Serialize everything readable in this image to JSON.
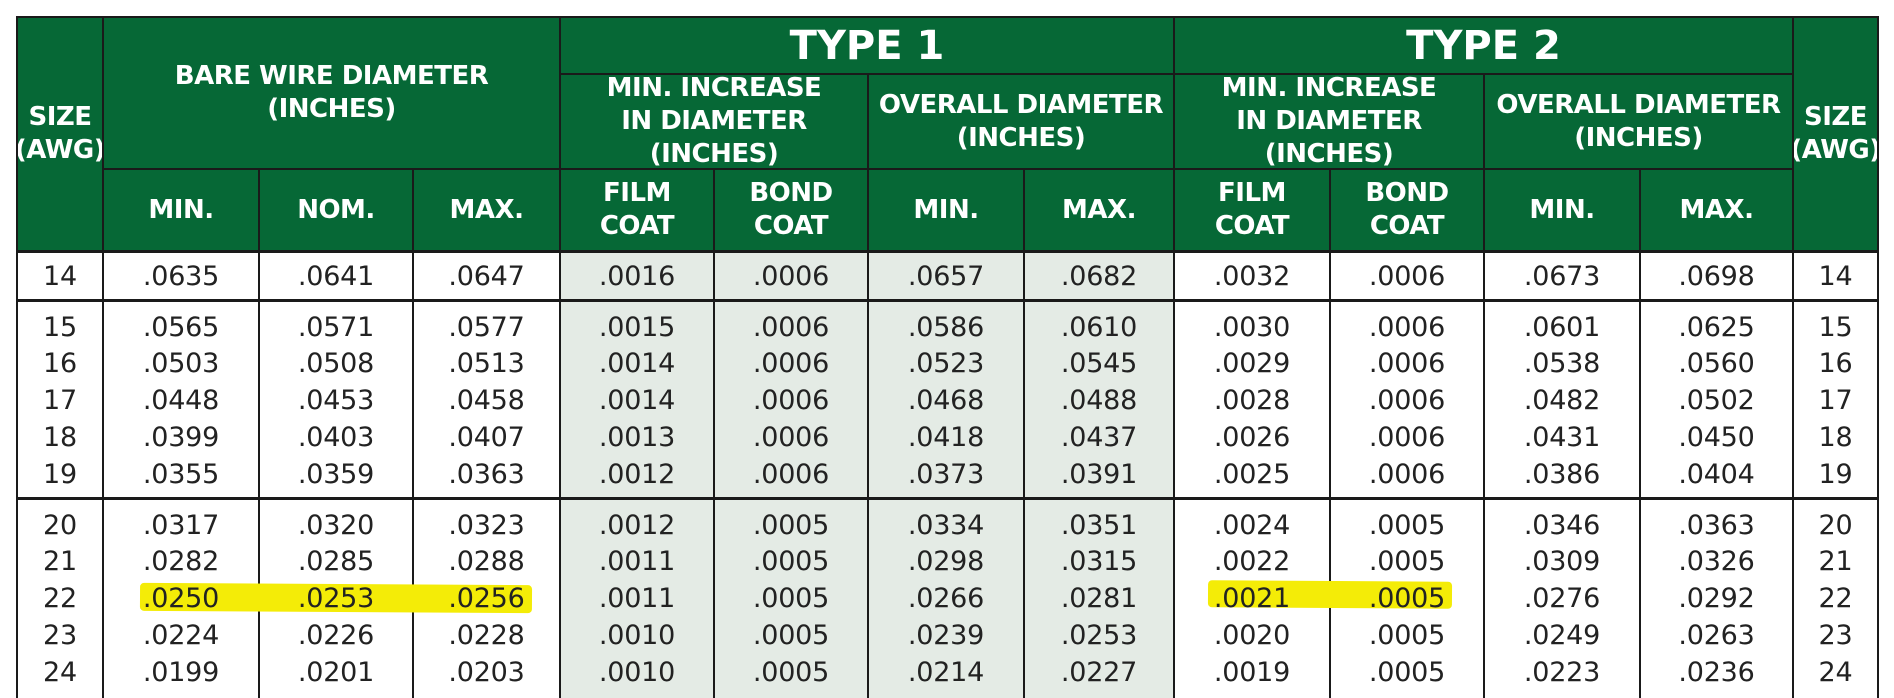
{
  "header": {
    "size": "SIZE\n(AWG)",
    "bare": "BARE WIRE DIAMETER\n(INCHES)",
    "bare_min": "MIN.",
    "bare_nom": "NOM.",
    "bare_max": "MAX.",
    "type1": "TYPE 1",
    "type2": "TYPE 2",
    "min_increase": "MIN. INCREASE\nIN DIAMETER (INCHES)",
    "overall": "OVERALL DIAMETER\n(INCHES)",
    "film": "FILM\nCOAT",
    "bond": "BOND\nCOAT",
    "min": "MIN.",
    "max": "MAX."
  },
  "groups": [
    {
      "rows": [
        [
          "14",
          ".0635",
          ".0641",
          ".0647",
          ".0016",
          ".0006",
          ".0657",
          ".0682",
          ".0032",
          ".0006",
          ".0673",
          ".0698",
          "14"
        ]
      ]
    },
    {
      "rows": [
        [
          "15",
          ".0565",
          ".0571",
          ".0577",
          ".0015",
          ".0006",
          ".0586",
          ".0610",
          ".0030",
          ".0006",
          ".0601",
          ".0625",
          "15"
        ],
        [
          "16",
          ".0503",
          ".0508",
          ".0513",
          ".0014",
          ".0006",
          ".0523",
          ".0545",
          ".0029",
          ".0006",
          ".0538",
          ".0560",
          "16"
        ],
        [
          "17",
          ".0448",
          ".0453",
          ".0458",
          ".0014",
          ".0006",
          ".0468",
          ".0488",
          ".0028",
          ".0006",
          ".0482",
          ".0502",
          "17"
        ],
        [
          "18",
          ".0399",
          ".0403",
          ".0407",
          ".0013",
          ".0006",
          ".0418",
          ".0437",
          ".0026",
          ".0006",
          ".0431",
          ".0450",
          "18"
        ],
        [
          "19",
          ".0355",
          ".0359",
          ".0363",
          ".0012",
          ".0006",
          ".0373",
          ".0391",
          ".0025",
          ".0006",
          ".0386",
          ".0404",
          "19"
        ]
      ]
    },
    {
      "rows": [
        [
          "20",
          ".0317",
          ".0320",
          ".0323",
          ".0012",
          ".0005",
          ".0334",
          ".0351",
          ".0024",
          ".0005",
          ".0346",
          ".0363",
          "20"
        ],
        [
          "21",
          ".0282",
          ".0285",
          ".0288",
          ".0011",
          ".0005",
          ".0298",
          ".0315",
          ".0022",
          ".0005",
          ".0309",
          ".0326",
          "21"
        ],
        [
          "22",
          ".0250",
          ".0253",
          ".0256",
          ".0011",
          ".0005",
          ".0266",
          ".0281",
          ".0021",
          ".0005",
          ".0276",
          ".0292",
          "22"
        ],
        [
          "23",
          ".0224",
          ".0226",
          ".0228",
          ".0010",
          ".0005",
          ".0239",
          ".0253",
          ".0020",
          ".0005",
          ".0249",
          ".0263",
          "23"
        ],
        [
          "24",
          ".0199",
          ".0201",
          ".0203",
          ".0010",
          ".0005",
          ".0214",
          ".0227",
          ".0019",
          ".0005",
          ".0223",
          ".0236",
          "24"
        ]
      ]
    }
  ],
  "highlight_color": "#f4ec07",
  "type1_shade_color": "#e4ebe5",
  "header_color": "#066836"
}
